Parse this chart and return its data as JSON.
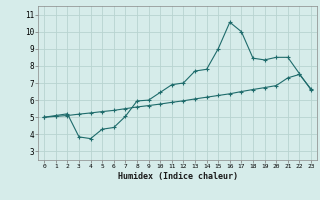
{
  "xlabel": "Humidex (Indice chaleur)",
  "background_color": "#d6ecea",
  "grid_color": "#b8d4d0",
  "line_color": "#1e6b6b",
  "xlim": [
    -0.5,
    23.5
  ],
  "ylim": [
    2.5,
    11.5
  ],
  "xticks": [
    0,
    1,
    2,
    3,
    4,
    5,
    6,
    7,
    8,
    9,
    10,
    11,
    12,
    13,
    14,
    15,
    16,
    17,
    18,
    19,
    20,
    21,
    22,
    23
  ],
  "yticks": [
    3,
    4,
    5,
    6,
    7,
    8,
    9,
    10,
    11
  ],
  "line1_x": [
    0,
    1,
    2,
    3,
    4,
    5,
    6,
    7,
    8,
    9,
    10,
    11,
    12,
    13,
    14,
    15,
    16,
    17,
    18,
    19,
    20,
    21,
    22,
    23
  ],
  "line1_y": [
    5.0,
    5.1,
    5.2,
    3.85,
    3.75,
    4.3,
    4.4,
    5.05,
    5.95,
    6.0,
    6.45,
    6.9,
    7.0,
    7.7,
    7.8,
    9.0,
    10.55,
    10.0,
    8.45,
    8.35,
    8.5,
    8.5,
    7.55,
    6.6
  ],
  "line2_x": [
    0,
    1,
    2,
    3,
    4,
    5,
    6,
    7,
    8,
    9,
    10,
    11,
    12,
    13,
    14,
    15,
    16,
    17,
    18,
    19,
    20,
    21,
    22,
    23
  ],
  "line2_y": [
    5.0,
    5.05,
    5.1,
    5.18,
    5.25,
    5.33,
    5.4,
    5.5,
    5.6,
    5.68,
    5.77,
    5.87,
    5.96,
    6.07,
    6.17,
    6.27,
    6.37,
    6.5,
    6.62,
    6.73,
    6.85,
    7.3,
    7.5,
    6.65
  ]
}
